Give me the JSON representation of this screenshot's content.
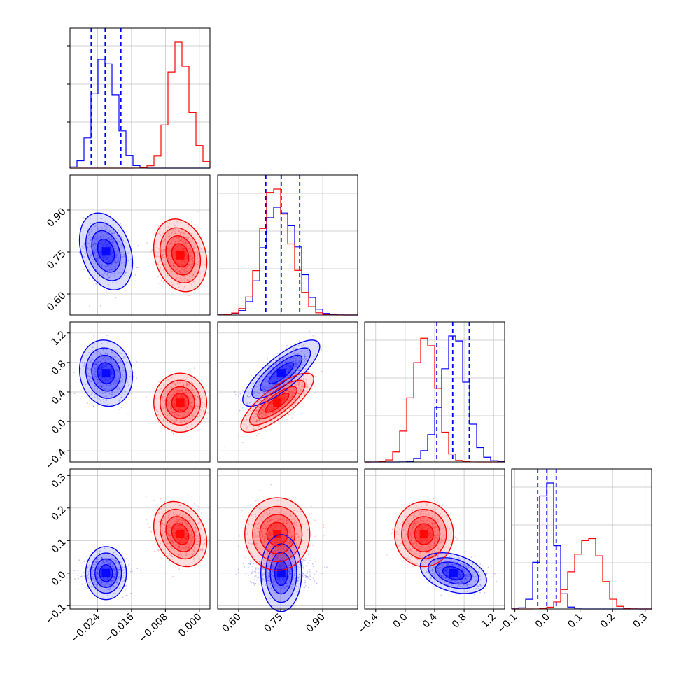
{
  "chart_data": {
    "type": "corner",
    "grid": true,
    "series": [
      {
        "name": "",
        "color": "#0000ff",
        "mean": [
          -0.022,
          0.752,
          0.655,
          0.0
        ],
        "sd": [
          0.0025,
          0.055,
          0.18,
          0.025
        ],
        "corr": {
          "0-1": -0.3,
          "0-2": -0.1,
          "0-3": 0.0,
          "1-2": 0.8,
          "1-3": 0.0,
          "2-3": -0.35
        },
        "quantile_lines": [
          [
            -0.0255,
            -0.0222,
            -0.0185
          ],
          [
            0.697,
            0.752,
            0.818
          ],
          [
            0.43,
            0.645,
            0.87
          ],
          [
            -0.03,
            -0.002,
            0.027
          ]
        ]
      },
      {
        "name": "",
        "color": "#ff0000",
        "mean": [
          -0.0045,
          0.738,
          0.255,
          0.12
        ],
        "sd": [
          0.0025,
          0.052,
          0.16,
          0.04
        ],
        "corr": {
          "0-1": -0.2,
          "0-2": 0.0,
          "0-3": -0.25,
          "1-2": 0.8,
          "1-3": 0.0,
          "2-3": 0.0
        },
        "quantile_lines": []
      }
    ],
    "x_ranges": [
      [
        -0.0305,
        0.0025
      ],
      [
        0.525,
        1.025
      ],
      [
        -0.55,
        1.35
      ],
      [
        -0.11,
        0.32
      ]
    ],
    "y_ranges_lower": [
      null,
      [
        0.525,
        1.025
      ],
      [
        -0.55,
        1.35
      ],
      [
        -0.11,
        0.32
      ]
    ],
    "x_ticks": [
      [
        "−0.024",
        "−0.016",
        "−0.008",
        "0.000"
      ],
      [
        "0.60",
        "0.75",
        "0.90"
      ],
      [
        "−0.4",
        "0.0",
        "0.4",
        "0.8",
        "1.2"
      ],
      [
        "−0.1",
        "0.0",
        "0.1",
        "0.2",
        "0.3"
      ]
    ],
    "x_tick_values": [
      [
        -0.024,
        -0.016,
        -0.008,
        0.0
      ],
      [
        0.6,
        0.75,
        0.9
      ],
      [
        -0.4,
        0.0,
        0.4,
        0.8,
        1.2
      ],
      [
        -0.1,
        0.0,
        0.1,
        0.2,
        0.3
      ]
    ],
    "y_ticks": [
      [],
      [
        "0.60",
        "0.75",
        "0.90"
      ],
      [
        "−0.4",
        "0.0",
        "0.4",
        "0.8",
        "1.2"
      ],
      [
        "−0.1",
        "0.0",
        "0.1",
        "0.2",
        "0.3"
      ]
    ],
    "y_tick_values": [
      [],
      [
        0.6,
        0.75,
        0.9
      ],
      [
        -0.4,
        0.0,
        0.4,
        0.8,
        1.2
      ],
      [
        -0.1,
        0.0,
        0.1,
        0.2,
        0.3
      ]
    ]
  }
}
